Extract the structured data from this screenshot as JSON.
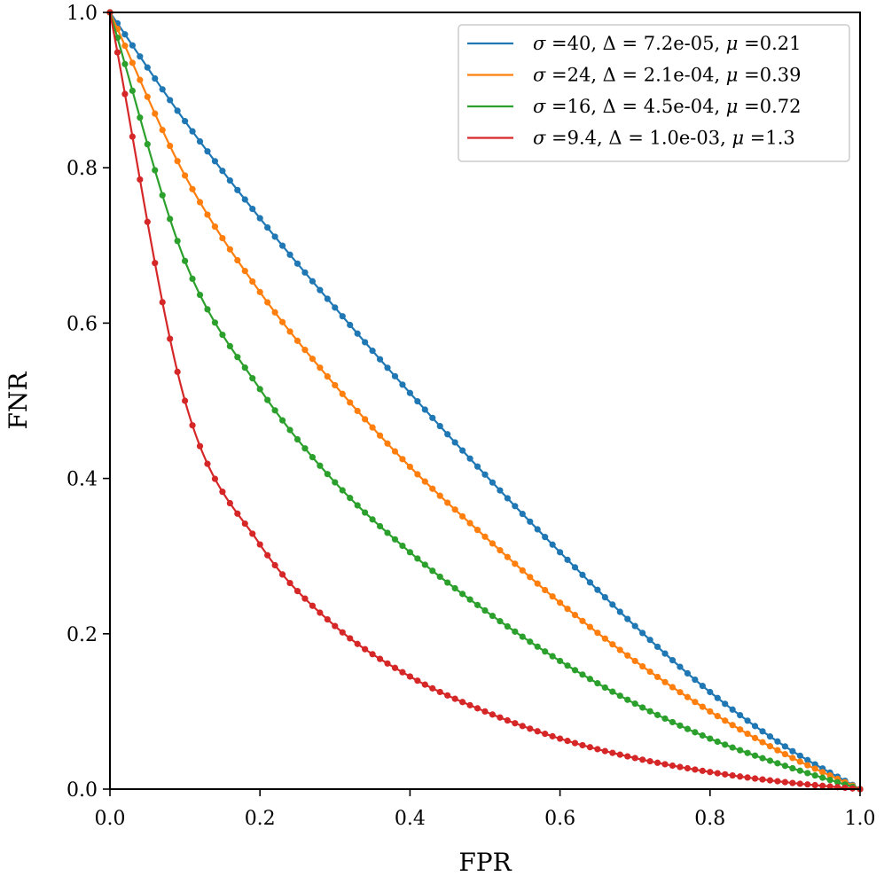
{
  "chart_data": {
    "type": "line",
    "title": "",
    "xlabel": "FPR",
    "ylabel": "FNR",
    "xlim": [
      0,
      1
    ],
    "ylim": [
      0,
      1
    ],
    "xticks": [
      0.0,
      0.2,
      0.4,
      0.6,
      0.8,
      1.0
    ],
    "yticks": [
      0.0,
      0.2,
      0.4,
      0.6,
      0.8,
      1.0
    ],
    "xtick_labels": [
      "0.0",
      "0.2",
      "0.4",
      "0.6",
      "0.8",
      "1.0"
    ],
    "ytick_labels": [
      "0.0",
      "0.2",
      "0.4",
      "0.6",
      "0.8",
      "1.0"
    ],
    "grid": false,
    "legend_position": "top-right",
    "markers": "dots",
    "x": [
      0.0,
      0.1,
      0.2,
      0.3,
      0.4,
      0.5,
      0.6,
      0.7,
      0.8,
      0.9,
      1.0
    ],
    "series": [
      {
        "label_parts": [
          "σ",
          " =40, Δ = 7.2e-05, ",
          "μ",
          " =0.21"
        ],
        "color": "#1f77b4",
        "values": [
          1.0,
          0.86,
          0.735,
          0.62,
          0.51,
          0.405,
          0.305,
          0.21,
          0.125,
          0.055,
          0.0
        ]
      },
      {
        "label_parts": [
          "σ",
          " =24, Δ = 2.1e-04, ",
          "μ",
          " =0.39"
        ],
        "color": "#ff7f0e",
        "values": [
          1.0,
          0.79,
          0.64,
          0.52,
          0.415,
          0.325,
          0.24,
          0.165,
          0.1,
          0.045,
          0.0
        ]
      },
      {
        "label_parts": [
          "σ",
          " =16, Δ = 4.5e-04, ",
          "μ",
          " =0.72"
        ],
        "color": "#2ca02c",
        "values": [
          1.0,
          0.68,
          0.515,
          0.395,
          0.305,
          0.23,
          0.165,
          0.11,
          0.065,
          0.03,
          0.0
        ]
      },
      {
        "label_parts": [
          "σ",
          " =9.4, Δ = 1.0e-03, ",
          "μ",
          " =1.3"
        ],
        "color": "#d62728",
        "values": [
          1.0,
          0.5,
          0.315,
          0.21,
          0.145,
          0.1,
          0.065,
          0.04,
          0.022,
          0.009,
          0.0
        ]
      }
    ]
  }
}
